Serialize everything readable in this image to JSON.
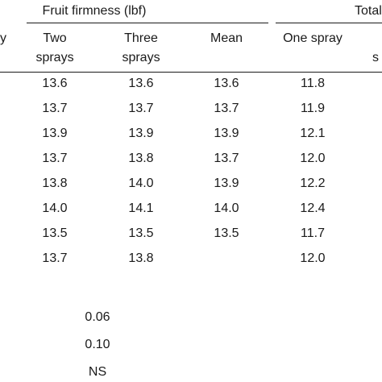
{
  "header": {
    "group1_partial": "y",
    "group1": "Fruit firmness (lbf)",
    "group2": "Total",
    "col_two": [
      "Two",
      "sprays"
    ],
    "col_three": [
      "Three",
      "sprays"
    ],
    "col_mean": "Mean",
    "col_one_spray": "One spray",
    "col_cut": "s"
  },
  "rows": [
    {
      "two": "13.6",
      "three": "13.6",
      "mean": "13.6",
      "one": "11.8"
    },
    {
      "two": "13.7",
      "three": "13.7",
      "mean": "13.7",
      "one": "11.9"
    },
    {
      "two": "13.9",
      "three": "13.9",
      "mean": "13.9",
      "one": "12.1"
    },
    {
      "two": "13.7",
      "three": "13.8",
      "mean": "13.7",
      "one": "12.0"
    },
    {
      "two": "13.8",
      "three": "14.0",
      "mean": "13.9",
      "one": "12.2"
    },
    {
      "two": "14.0",
      "three": "14.1",
      "mean": "14.0",
      "one": "12.4"
    },
    {
      "two": "13.5",
      "three": "13.5",
      "mean": "13.5",
      "one": "11.7"
    },
    {
      "two": "13.7",
      "three": "13.8",
      "mean": "",
      "one": "12.0"
    }
  ],
  "stats": [
    "0.06",
    "0.10",
    "NS"
  ]
}
